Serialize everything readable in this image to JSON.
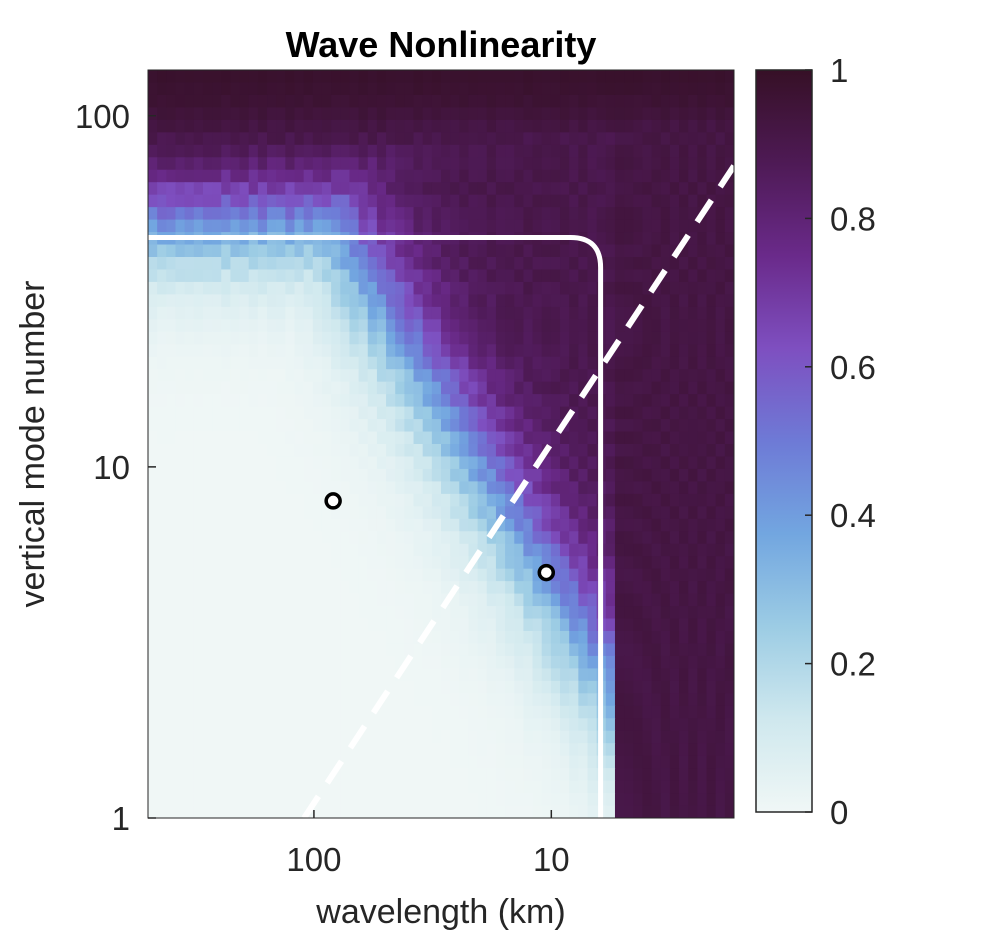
{
  "chart_data": {
    "type": "heatmap",
    "title": "Wave Nonlinearity",
    "xlabel": "wavelength (km)",
    "ylabel": "vertical mode number",
    "x_scale": "log",
    "x_reversed": true,
    "y_scale": "log",
    "x_ticks": [
      100,
      10
    ],
    "x_tick_labels": [
      "100",
      "10"
    ],
    "xlim": [
      500,
      1.7
    ],
    "y_ticks": [
      1,
      10,
      100
    ],
    "y_tick_labels": [
      "1",
      "10",
      "100"
    ],
    "ylim": [
      1,
      135
    ],
    "colorbar": {
      "range": [
        0,
        1
      ],
      "ticks": [
        0,
        0.2,
        0.4,
        0.6,
        0.8,
        1
      ],
      "tick_labels": [
        "0",
        "0.2",
        "0.4",
        "0.6",
        "0.8",
        "1"
      ],
      "colormap": [
        "#f0f7f6",
        "#cfe8ee",
        "#9ccce4",
        "#72a6e0",
        "#6e7ad6",
        "#7e4fc0",
        "#6a2a8a",
        "#4e1a55",
        "#361026"
      ]
    },
    "field_description": {
      "low_values_region": "large wavelengths and low mode numbers",
      "high_values_region": "short wavelengths and high mode numbers"
    },
    "solid_curve": {
      "color": "#ffffff",
      "horizontal_mode": 45,
      "vertical_wavelength_km": 6.2
    },
    "dashed_line": {
      "color": "#ffffff",
      "points": [
        [
          110,
          1
        ],
        [
          1.7,
          72
        ]
      ]
    },
    "markers": [
      {
        "wavelength_km": 83,
        "mode": 8
      },
      {
        "wavelength_km": 10.5,
        "mode": 5
      }
    ]
  }
}
